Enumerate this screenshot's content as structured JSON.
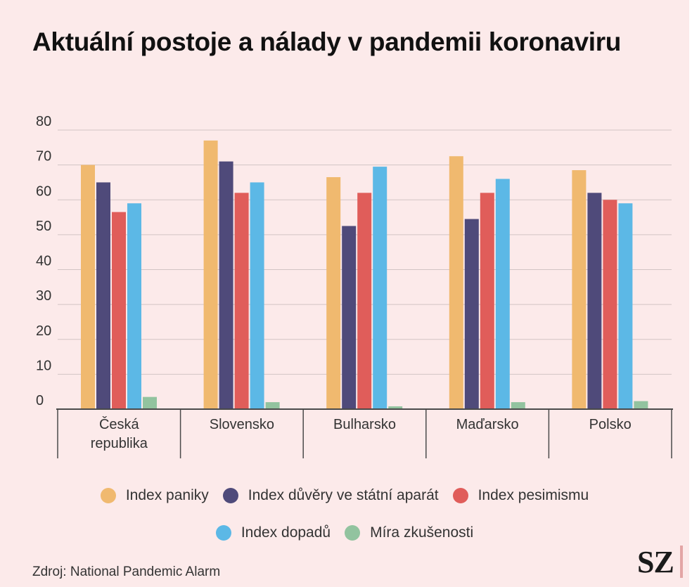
{
  "header": {
    "title": "Aktuální postoje a nálady v pandemii koronaviru"
  },
  "chart_data": {
    "type": "bar",
    "title": "Aktuální postoje a nálady v pandemii koronaviru",
    "xlabel": "",
    "ylabel": "",
    "ylim": [
      0,
      80
    ],
    "yticks": [
      0,
      10,
      20,
      30,
      40,
      50,
      60,
      70,
      80
    ],
    "grid": true,
    "legend_position": "bottom",
    "categories": [
      "Česká republika",
      "Slovensko",
      "Bulharsko",
      "Maďarsko",
      "Polsko"
    ],
    "category_lines": [
      [
        "Česká",
        "republika"
      ],
      [
        "Slovensko"
      ],
      [
        "Bulharsko"
      ],
      [
        "Maďarsko"
      ],
      [
        "Polsko"
      ]
    ],
    "series": [
      {
        "name": "Index paniky",
        "color": "#f0b96f",
        "values": [
          70,
          77,
          66.5,
          72.5,
          68.5
        ]
      },
      {
        "name": "Index důvěry ve státní aparát",
        "color": "#4f4a7a",
        "values": [
          65,
          71,
          52.5,
          54.5,
          62
        ]
      },
      {
        "name": "Index pesimismu",
        "color": "#e05d5a",
        "values": [
          56.5,
          62,
          62,
          62,
          60
        ]
      },
      {
        "name": "Index dopadů",
        "color": "#5cb8e6",
        "values": [
          59,
          65,
          69.5,
          66,
          59
        ]
      },
      {
        "name": "Míra zkušenosti",
        "color": "#92c39f",
        "values": [
          3.5,
          2,
          0.8,
          2,
          2.3
        ]
      }
    ]
  },
  "legend": {
    "rows": [
      [
        0,
        1,
        2
      ],
      [
        3,
        4
      ]
    ]
  },
  "footer": {
    "source": "Zdroj: National Pandemic Alarm",
    "logo": "SZ"
  }
}
